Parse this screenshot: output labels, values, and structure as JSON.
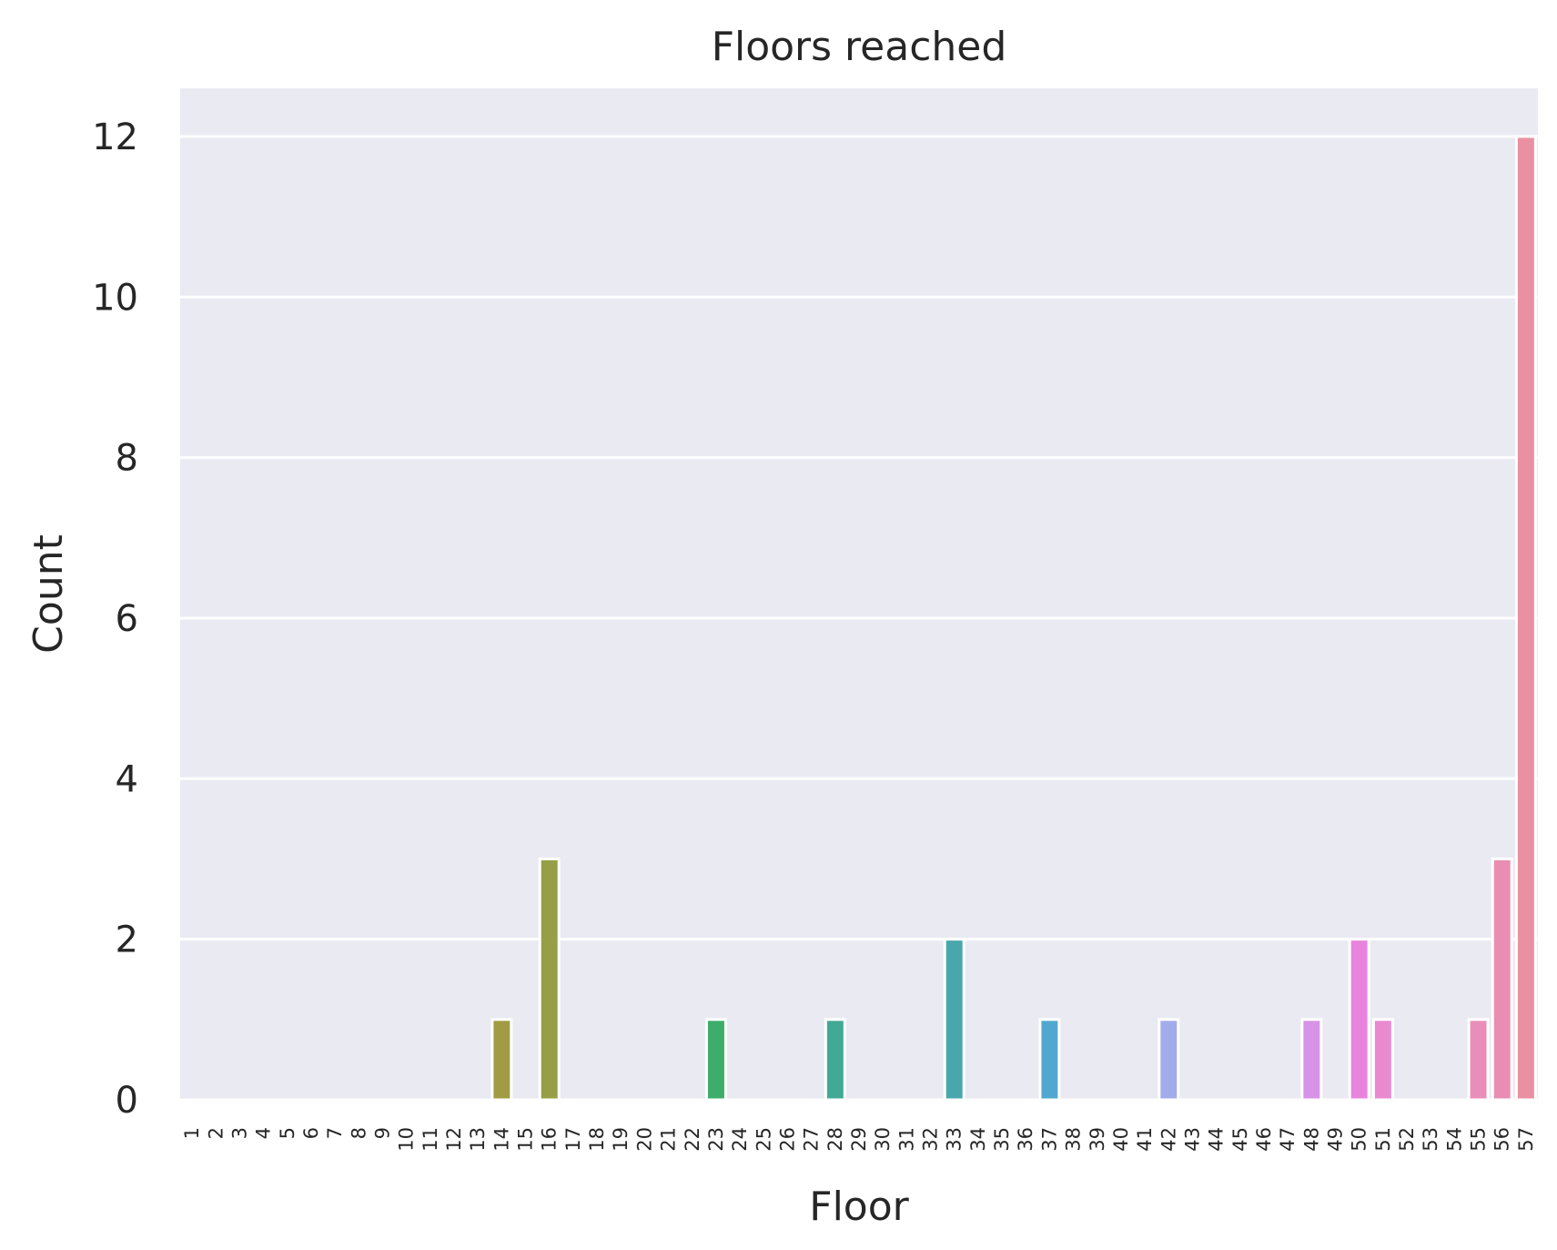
{
  "chart_data": {
    "type": "bar",
    "title": "Floors reached",
    "xlabel": "Floor",
    "ylabel": "Count",
    "ylim": [
      0,
      12.6
    ],
    "yticks": [
      0,
      2,
      4,
      6,
      8,
      10,
      12
    ],
    "grid": true,
    "categories": [
      "1",
      "2",
      "3",
      "4",
      "5",
      "6",
      "7",
      "8",
      "9",
      "10",
      "11",
      "12",
      "13",
      "14",
      "15",
      "16",
      "17",
      "18",
      "19",
      "20",
      "21",
      "22",
      "23",
      "24",
      "25",
      "26",
      "27",
      "28",
      "29",
      "30",
      "31",
      "32",
      "33",
      "34",
      "35",
      "36",
      "37",
      "38",
      "39",
      "40",
      "41",
      "42",
      "43",
      "44",
      "45",
      "46",
      "47",
      "48",
      "49",
      "50",
      "51",
      "52",
      "53",
      "54",
      "55",
      "56",
      "57"
    ],
    "values": [
      0,
      0,
      0,
      0,
      0,
      0,
      0,
      0,
      0,
      0,
      0,
      0,
      0,
      1,
      0,
      3,
      0,
      0,
      0,
      0,
      0,
      0,
      1,
      0,
      0,
      0,
      0,
      1,
      0,
      0,
      0,
      0,
      2,
      0,
      0,
      0,
      1,
      0,
      0,
      0,
      0,
      1,
      0,
      0,
      0,
      0,
      0,
      1,
      0,
      2,
      1,
      0,
      0,
      0,
      1,
      3,
      12
    ],
    "colors": {
      "14": "#a19c44",
      "16": "#969e46",
      "23": "#3cad6a",
      "28": "#42a996",
      "33": "#47a7ad",
      "37": "#51a7cf",
      "42": "#a1aceb",
      "48": "#d793e7",
      "50": "#e884dd",
      "51": "#e98ad1",
      "55": "#e98eb8",
      "56": "#e98db3",
      "57": "#ea90a2"
    },
    "plot_background": "#eaeaf2",
    "grid_color": "#ffffff"
  }
}
